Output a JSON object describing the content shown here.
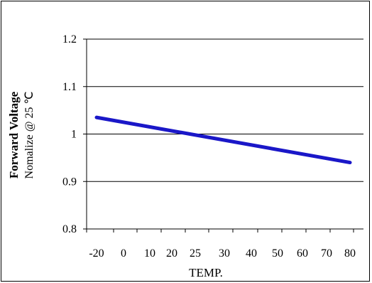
{
  "chart_data": {
    "type": "line",
    "title": "",
    "xlabel": "TEMP.",
    "ylabel": "Forward Voltage",
    "ylabel_sub": "Nomalize @ 25 ℃",
    "x_ticks": [
      -20,
      0,
      10,
      20,
      25,
      30,
      40,
      50,
      60,
      70,
      80
    ],
    "y_ticks": [
      0.8,
      0.9,
      1,
      1.1,
      1.2
    ],
    "y_tick_labels": [
      "0.8",
      "0.9",
      "1",
      "1.1",
      "1.2"
    ],
    "ylim": [
      0.8,
      1.2
    ],
    "grid": true,
    "series": [
      {
        "x": [
          -20,
          80
        ],
        "y": [
          1.035,
          0.94
        ],
        "color": "#1a17c8"
      }
    ]
  }
}
